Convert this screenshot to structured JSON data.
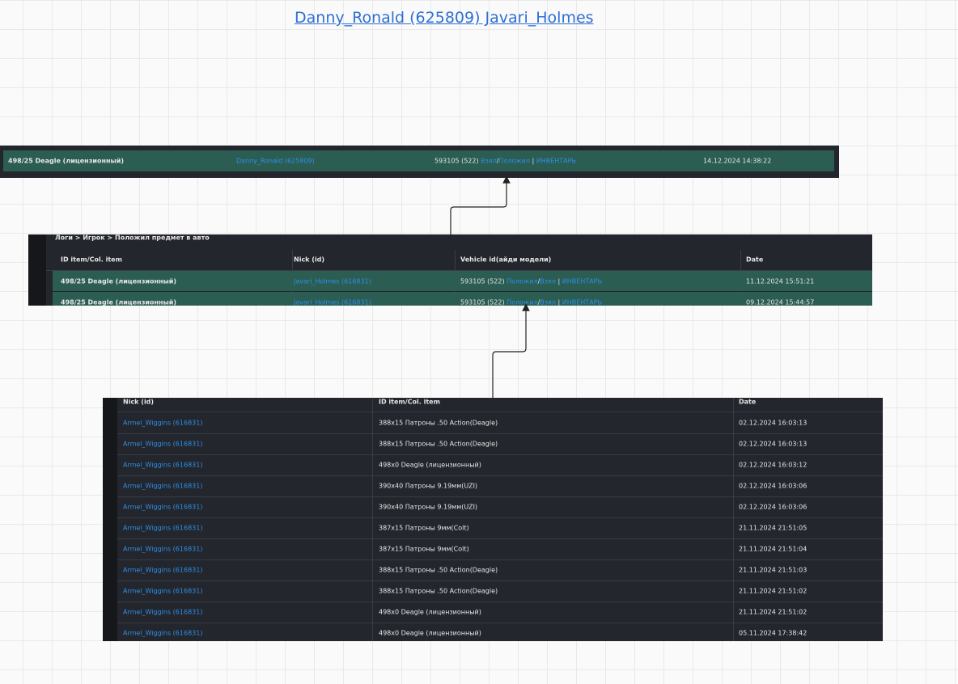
{
  "header": {
    "title": "Danny_Ronald (625809) Javari_Holmes"
  },
  "panel1": {
    "rows": [
      {
        "item": "498/25 Deagle (лицензионный)",
        "nick": "Danny_Ronald (625809)",
        "vehicle": {
          "id": "593105 (522)",
          "a": "Взял",
          "sep": "/",
          "b": "Положил",
          "pipe": "|",
          "inv": "ИНВЕНТАРЬ"
        },
        "date": "14.12.2024 14:38:22"
      }
    ]
  },
  "panel2": {
    "breadcrumb": "Логи > Игрок > Положил предмет в авто",
    "columns": [
      "ID item/Col. item",
      "Nick (id)",
      "Vehicle id(айди модели)",
      "Date"
    ],
    "rows": [
      {
        "item": "498/25 Deagle (лицензионный)",
        "nick": "Javari_Holmes (616831)",
        "vehicle": {
          "id": "593105 (522)",
          "a": "Положил",
          "sep": "/",
          "b": "Взял",
          "pipe": "|",
          "inv": "ИНВЕНТАРЬ"
        },
        "date": "11.12.2024 15:51:21"
      },
      {
        "item": "498/25 Deagle (лицензионный)",
        "nick": "Javari_Holmes (616831)",
        "vehicle": {
          "id": "593105 (522)",
          "a": "Положил",
          "sep": "/",
          "b": "Взял",
          "pipe": "|",
          "inv": "ИНВЕНТАРЬ"
        },
        "date": "09.12.2024 15:44:57"
      }
    ]
  },
  "panel3": {
    "columns": [
      "Nick (id)",
      "ID item/Col. item",
      "Date"
    ],
    "rows": [
      [
        "Armel_Wiggins (616831)",
        "388x15 Патроны .50 Action(Deagle)",
        "02.12.2024 16:03:13"
      ],
      [
        "Armel_Wiggins (616831)",
        "388x15 Патроны .50 Action(Deagle)",
        "02.12.2024 16:03:13"
      ],
      [
        "Armel_Wiggins (616831)",
        "498x0 Deagle (лицензионный)",
        "02.12.2024 16:03:12"
      ],
      [
        "Armel_Wiggins (616831)",
        "390x40 Патроны 9.19мм(UZI)",
        "02.12.2024 16:03:06"
      ],
      [
        "Armel_Wiggins (616831)",
        "390x40 Патроны 9.19мм(UZI)",
        "02.12.2024 16:03:06"
      ],
      [
        "Armel_Wiggins (616831)",
        "387x15 Патроны 9мм(Colt)",
        "21.11.2024 21:51:05"
      ],
      [
        "Armel_Wiggins (616831)",
        "387x15 Патроны 9мм(Colt)",
        "21.11.2024 21:51:04"
      ],
      [
        "Armel_Wiggins (616831)",
        "388x15 Патроны .50 Action(Deagle)",
        "21.11.2024 21:51:03"
      ],
      [
        "Armel_Wiggins (616831)",
        "388x15 Патроны .50 Action(Deagle)",
        "21.11.2024 21:51:02"
      ],
      [
        "Armel_Wiggins (616831)",
        "498x0 Deagle (лицензионный)",
        "21.11.2024 21:51:02"
      ],
      [
        "Armel_Wiggins (616831)",
        "498x0 Deagle (лицензионный)",
        "05.11.2024 17:38:42"
      ]
    ]
  }
}
